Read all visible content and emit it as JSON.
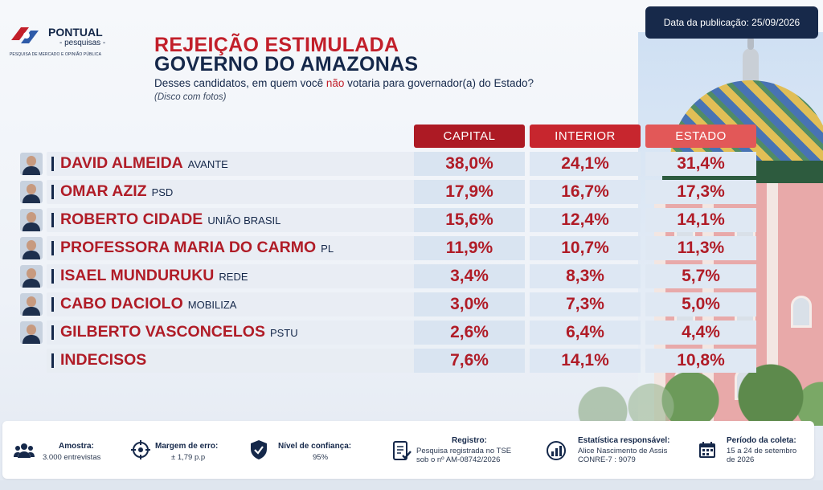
{
  "logo": {
    "title": "PONTUAL",
    "sub": "- pesquisas -",
    "tagline": "PESQUISA DE MERCADO E OPINIÃO PÚBLICA"
  },
  "publication": "Data da publicação: 25/09/2026",
  "title_line1": "REJEIÇÃO ESTIMULADA",
  "title_line2": "GOVERNO DO AMAZONAS",
  "question": {
    "part1": "Desses candidatos, em quem você ",
    "highlight": "não",
    "part2": " votaria para governador(a) do Estado? ",
    "note": "(Disco com fotos)"
  },
  "columns": {
    "capital": "CAPITAL",
    "interior": "INTERIOR",
    "estado": "ESTADO"
  },
  "colors": {
    "navy": "#15284a",
    "red": "#b01c27",
    "capital": "#ad1a24",
    "interior": "#c7262e",
    "estado": "#e25858"
  },
  "rows": [
    {
      "name": "DAVID ALMEIDA",
      "party": "AVANTE",
      "capital": "38,0%",
      "interior": "24,1%",
      "estado": "31,4%",
      "photo": true
    },
    {
      "name": "OMAR AZIZ",
      "party": "PSD",
      "capital": "17,9%",
      "interior": "16,7%",
      "estado": "17,3%",
      "photo": true
    },
    {
      "name": "ROBERTO CIDADE",
      "party": "UNIÃO BRASIL",
      "capital": "15,6%",
      "interior": "12,4%",
      "estado": "14,1%",
      "photo": true
    },
    {
      "name": "PROFESSORA MARIA DO CARMO",
      "party": "PL",
      "capital": "11,9%",
      "interior": "10,7%",
      "estado": "11,3%",
      "photo": true
    },
    {
      "name": "ISAEL MUNDURUKU",
      "party": "REDE",
      "capital": "3,4%",
      "interior": "8,3%",
      "estado": "5,7%",
      "photo": true
    },
    {
      "name": "CABO DACIOLO",
      "party": "MOBILIZA",
      "capital": "3,0%",
      "interior": "7,3%",
      "estado": "5,0%",
      "photo": true
    },
    {
      "name": "GILBERTO VASCONCELOS",
      "party": "PSTU",
      "capital": "2,6%",
      "interior": "6,4%",
      "estado": "4,4%",
      "photo": true
    },
    {
      "name": "INDECISOS",
      "party": "",
      "capital": "7,6%",
      "interior": "14,1%",
      "estado": "10,8%",
      "photo": false
    }
  ],
  "footer": {
    "amostra": {
      "label": "Amostra:",
      "value": "3.000 entrevistas",
      "icon": "people-icon"
    },
    "margem": {
      "label": "Margem de erro:",
      "value": "± 1,79 p.p",
      "icon": "target-icon"
    },
    "confianca": {
      "label": "Nível de confiança:",
      "value": "95%",
      "icon": "shield-check-icon"
    },
    "registro": {
      "label": "Registro:",
      "value1": "Pesquisa registrada no TSE",
      "value2": "sob o nº AM-08742/2026",
      "icon": "document-check-icon"
    },
    "estatistica": {
      "label": "Estatística responsável:",
      "value1": "Alice Nascimento de Assis",
      "value2": "CONRE-7 : 9079",
      "icon": "chart-icon"
    },
    "periodo": {
      "label": "Período da coleta:",
      "value1": "15 a 24 de setembro",
      "value2": "de 2026",
      "icon": "calendar-icon"
    }
  }
}
